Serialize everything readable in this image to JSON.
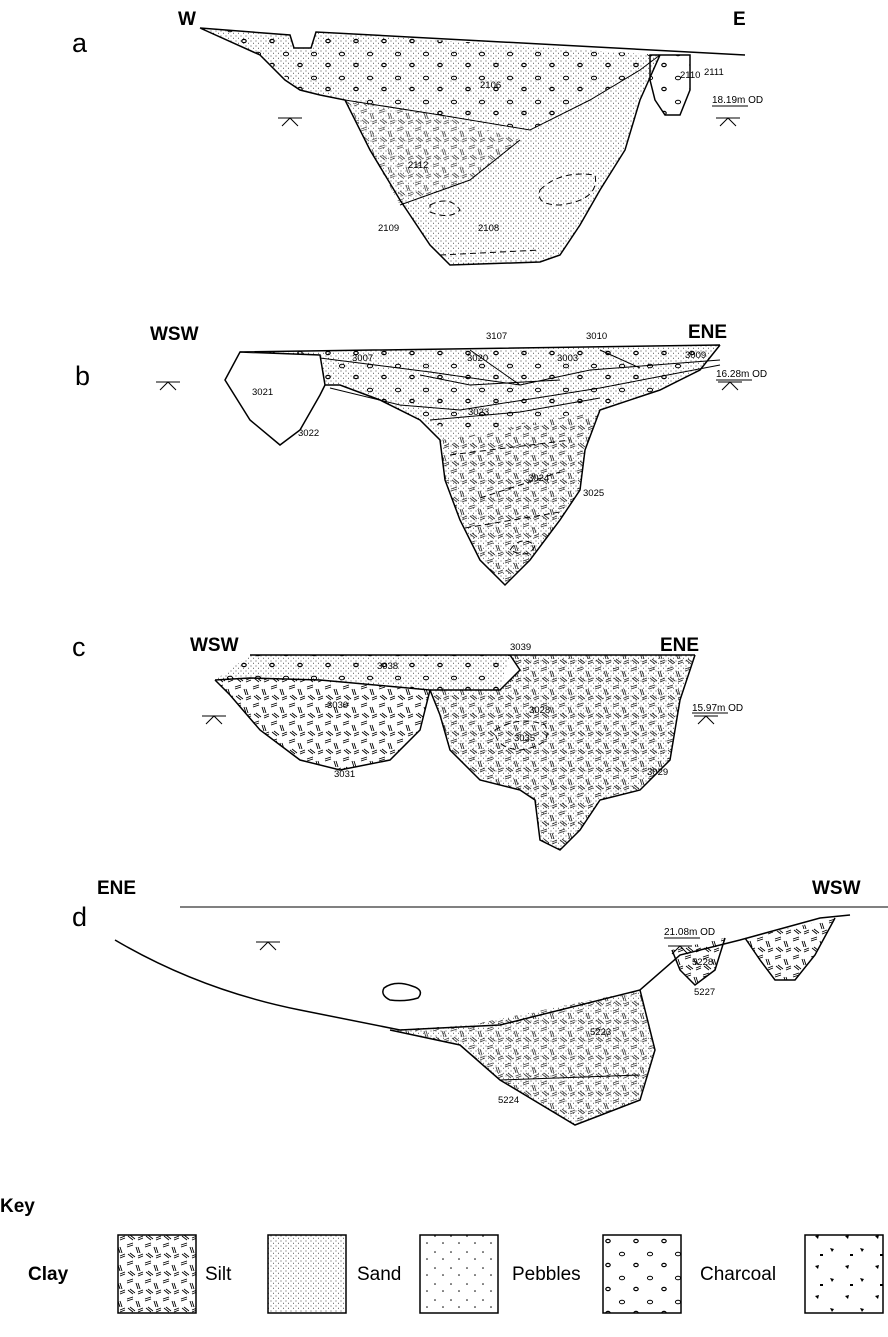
{
  "sections": [
    {
      "label": "a",
      "left": "W",
      "right": "E",
      "datum": "18.19m OD",
      "contexts": [
        "2106",
        "2110",
        "2111",
        "2112",
        "2108",
        "2109"
      ]
    },
    {
      "label": "b",
      "left": "WSW",
      "right": "ENE",
      "datum": "16.28m OD",
      "contexts": [
        "3107",
        "3010",
        "3007",
        "3020",
        "3003",
        "3009",
        "3021",
        "3023",
        "3022",
        "3024",
        "3025"
      ]
    },
    {
      "label": "c",
      "left": "WSW",
      "right": "ENE",
      "datum": "15.97m OD",
      "contexts": [
        "3039",
        "3038",
        "3030",
        "3028",
        "3035",
        "3031",
        "3029"
      ]
    },
    {
      "label": "d",
      "left": "ENE",
      "right": "WSW",
      "datum": "21.08m OD",
      "contexts": [
        "5228",
        "5227",
        "5223",
        "5224"
      ]
    }
  ],
  "key": {
    "title": "Key",
    "items": [
      "Clay",
      "Silt",
      "Sand",
      "Pebbles",
      "Charcoal"
    ]
  }
}
